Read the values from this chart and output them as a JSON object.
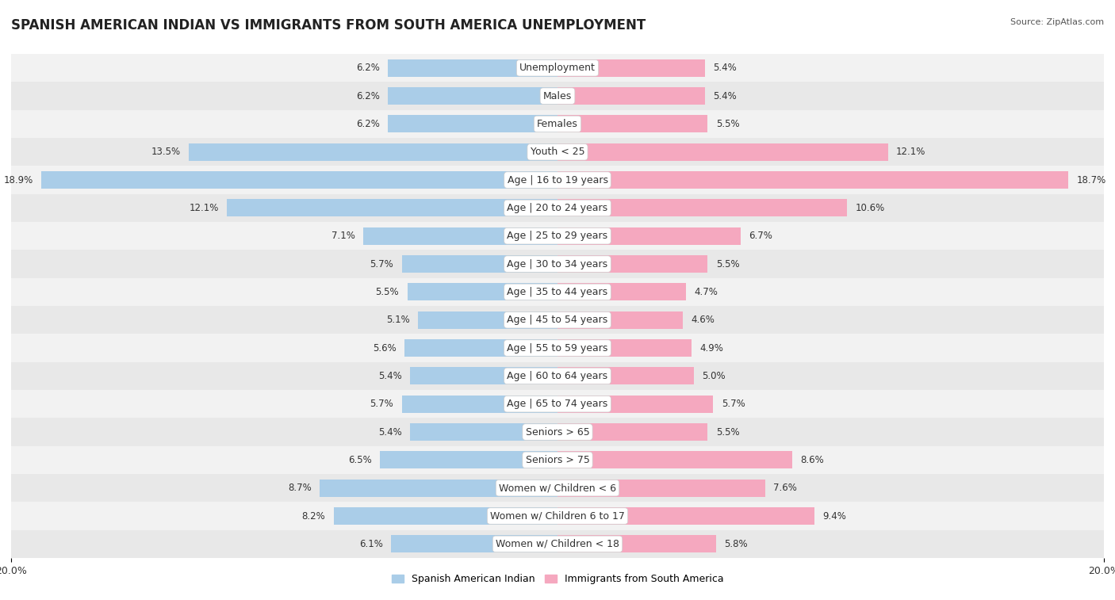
{
  "title": "SPANISH AMERICAN INDIAN VS IMMIGRANTS FROM SOUTH AMERICA UNEMPLOYMENT",
  "source": "Source: ZipAtlas.com",
  "categories": [
    "Unemployment",
    "Males",
    "Females",
    "Youth < 25",
    "Age | 16 to 19 years",
    "Age | 20 to 24 years",
    "Age | 25 to 29 years",
    "Age | 30 to 34 years",
    "Age | 35 to 44 years",
    "Age | 45 to 54 years",
    "Age | 55 to 59 years",
    "Age | 60 to 64 years",
    "Age | 65 to 74 years",
    "Seniors > 65",
    "Seniors > 75",
    "Women w/ Children < 6",
    "Women w/ Children 6 to 17",
    "Women w/ Children < 18"
  ],
  "left_values": [
    6.2,
    6.2,
    6.2,
    13.5,
    18.9,
    12.1,
    7.1,
    5.7,
    5.5,
    5.1,
    5.6,
    5.4,
    5.7,
    5.4,
    6.5,
    8.7,
    8.2,
    6.1
  ],
  "right_values": [
    5.4,
    5.4,
    5.5,
    12.1,
    18.7,
    10.6,
    6.7,
    5.5,
    4.7,
    4.6,
    4.9,
    5.0,
    5.7,
    5.5,
    8.6,
    7.6,
    9.4,
    5.8
  ],
  "left_color": "#aacde8",
  "right_color": "#f5a8bf",
  "left_label": "Spanish American Indian",
  "right_label": "Immigrants from South America",
  "axis_max": 20.0,
  "bar_height": 0.62,
  "row_colors": [
    "#f2f2f2",
    "#e8e8e8"
  ],
  "title_fontsize": 12,
  "label_fontsize": 9,
  "tick_fontsize": 9,
  "value_fontsize": 8.5,
  "pill_color": "#ffffff",
  "pill_text_color": "#333333"
}
